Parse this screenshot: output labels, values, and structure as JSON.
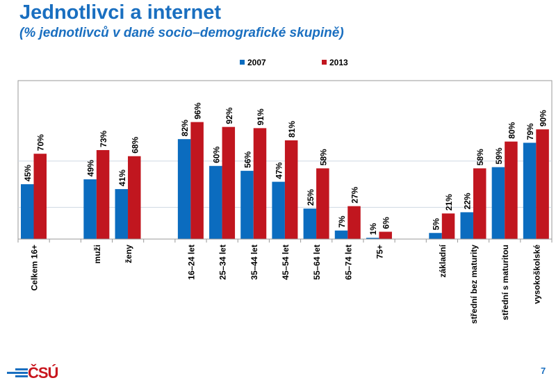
{
  "title": "Jednotlivci a internet",
  "subtitle": "(% jednotlivců v dané socio–demografické skupině)",
  "footer": {
    "logo": "ČSÚ",
    "page": "7"
  },
  "colors": {
    "2007": "#0b6cbf",
    "2013": "#c1161f",
    "title": "#1a6fc0"
  },
  "chart_data": {
    "type": "bar",
    "title": "",
    "xlabel": "",
    "ylabel": "",
    "ylim": [
      0,
      130
    ],
    "grid": true,
    "legend": "top-center",
    "categories": [
      "Celkem 16+",
      "",
      "muži",
      "ženy",
      "",
      "16–24 let",
      "25–34 let",
      "35–44 let",
      "45–54 let",
      "55–64 let",
      "65–74 let",
      "75+",
      "",
      "základní",
      "střední bez maturity",
      "střední s maturitou",
      "vysokoškolské"
    ],
    "series": [
      {
        "name": "2007",
        "values": [
          45,
          null,
          49,
          41,
          null,
          82,
          60,
          56,
          47,
          25,
          7,
          1,
          null,
          5,
          22,
          59,
          79
        ]
      },
      {
        "name": "2013",
        "values": [
          70,
          null,
          73,
          68,
          null,
          96,
          92,
          91,
          81,
          58,
          27,
          6,
          null,
          21,
          58,
          80,
          90
        ]
      }
    ]
  }
}
